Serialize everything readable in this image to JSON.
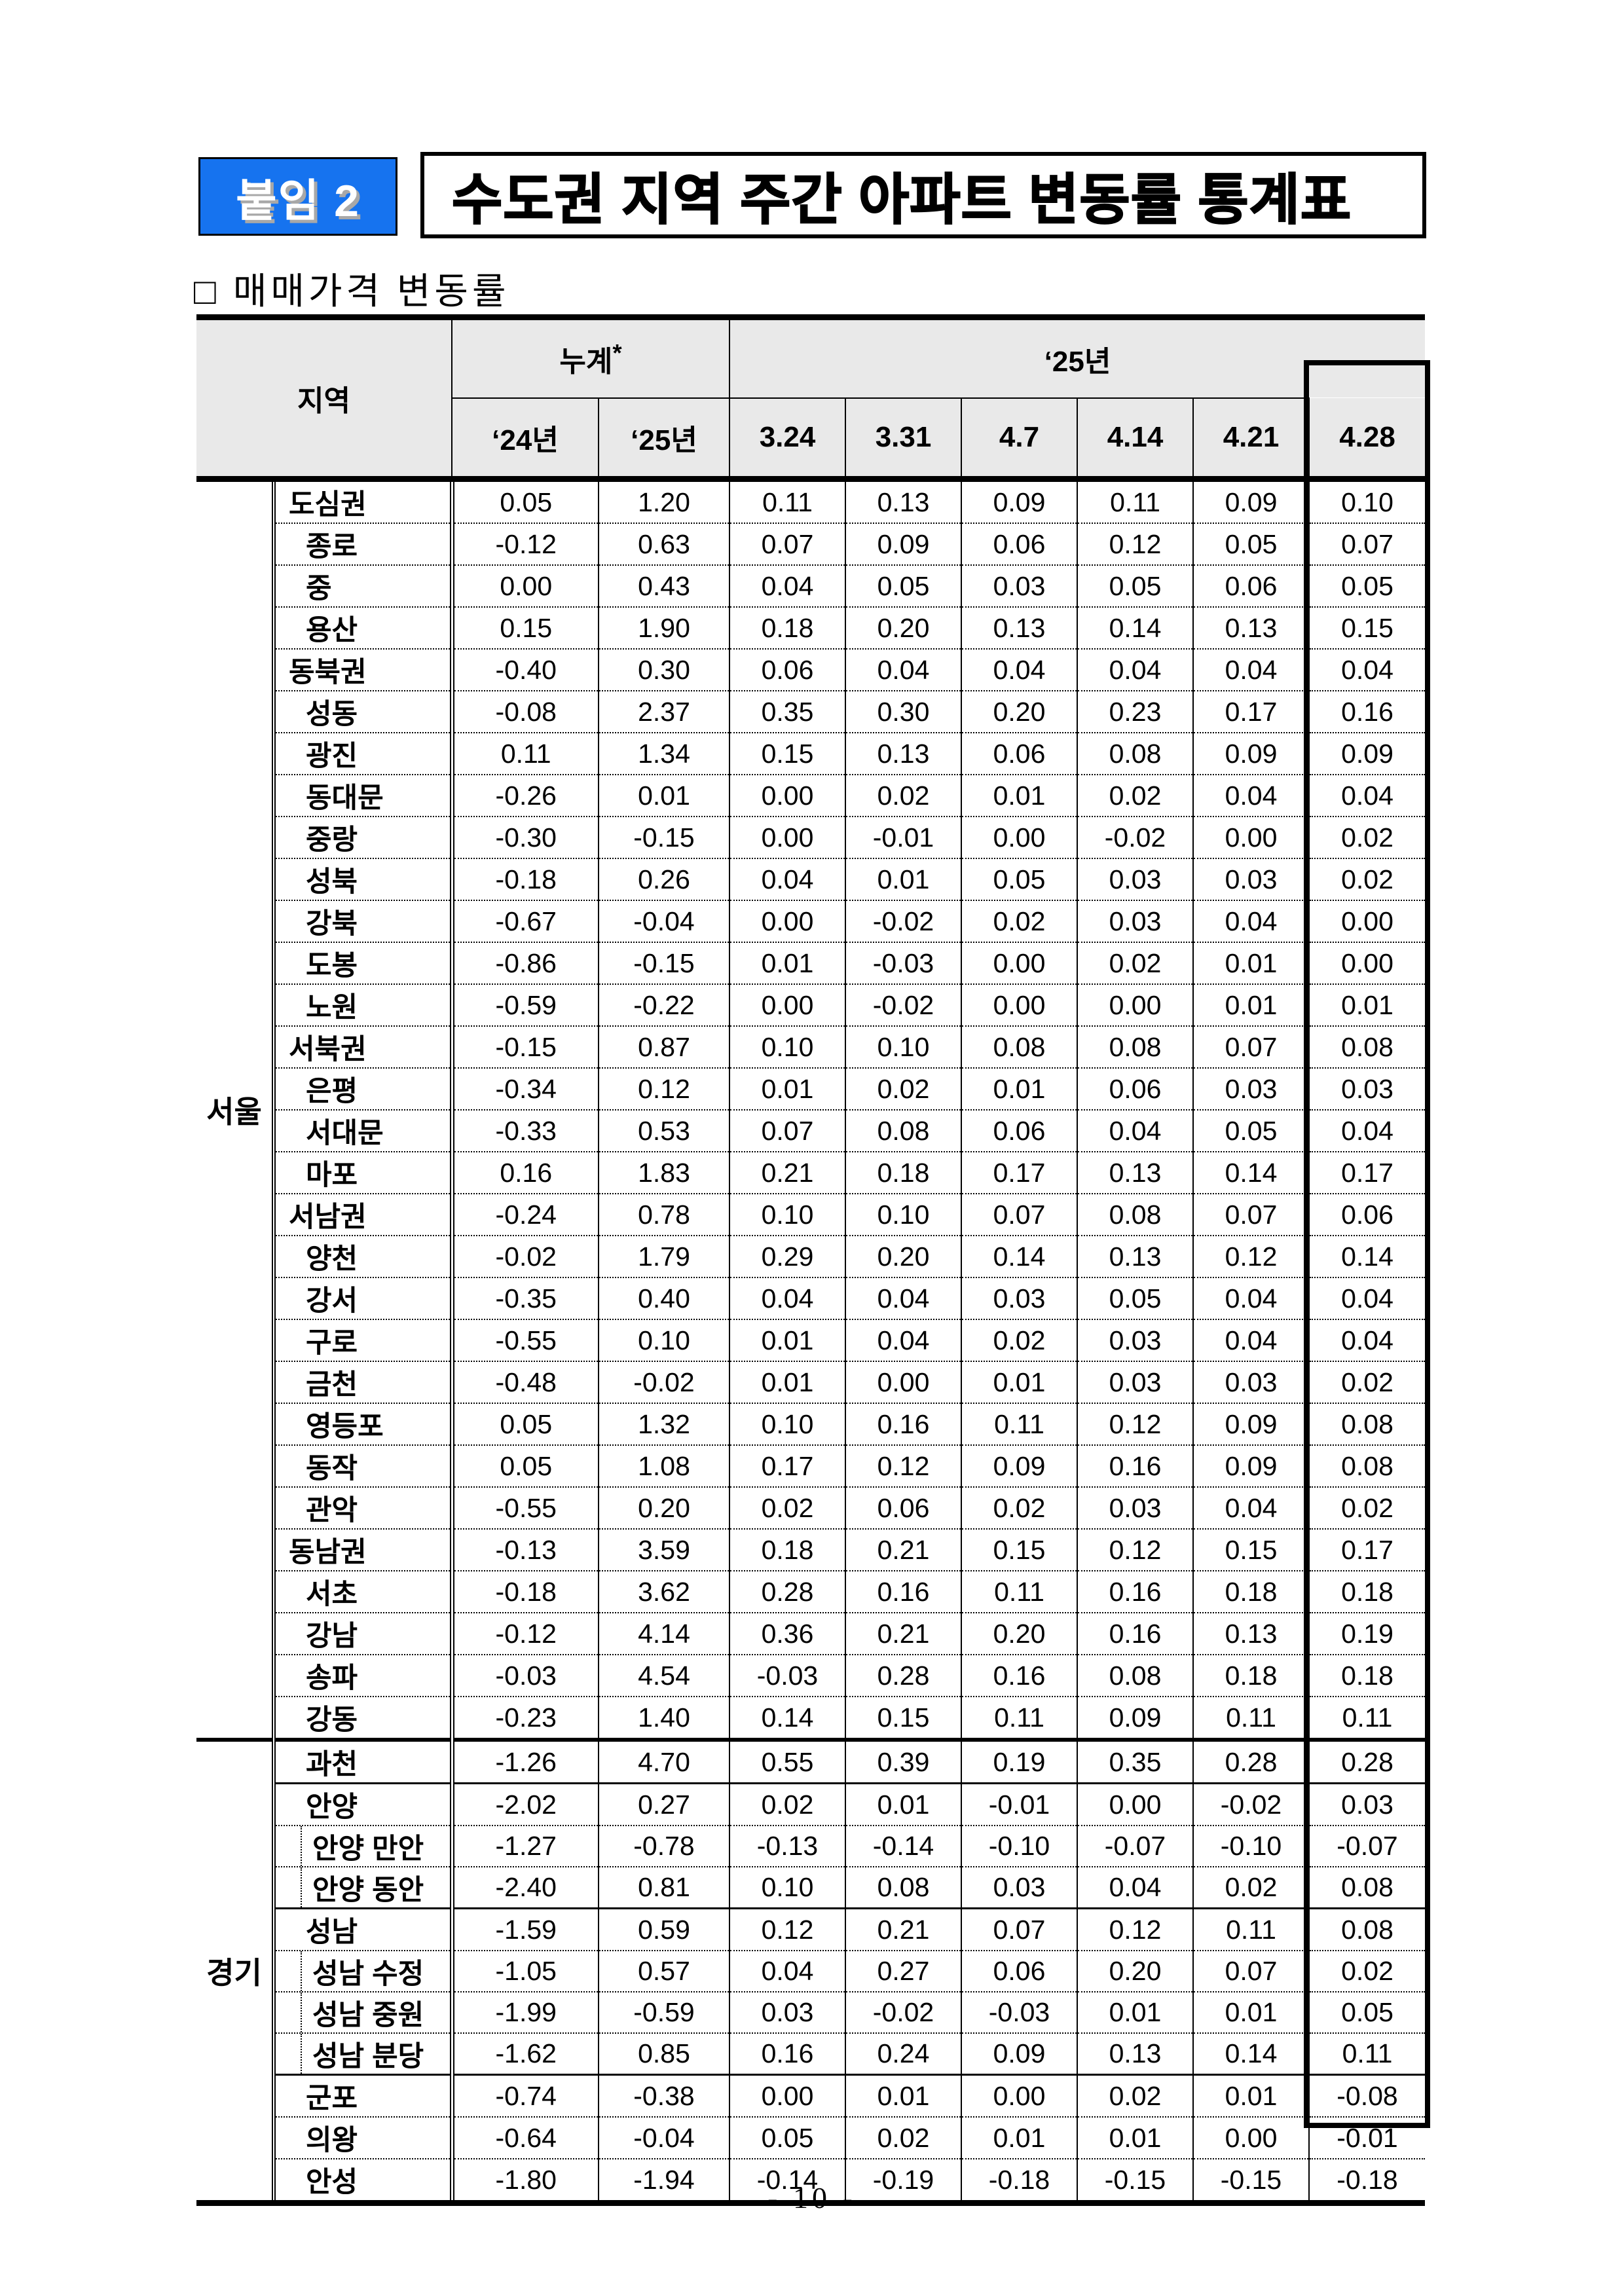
{
  "badge": {
    "label": "붙임 2",
    "color": "#1673ef"
  },
  "title": "수도권 지역 주간 아파트 변동률 통계표",
  "subtitle": "□ 매매가격 변동률",
  "footer": {
    "page_label": "- 10 -"
  },
  "table": {
    "header": {
      "region": "지역",
      "cumulative": "누계",
      "cumulative_note": "*",
      "year25_group": "‘25년",
      "sub_headers": [
        "‘24년",
        "‘25년",
        "3.24",
        "3.31",
        "4.7",
        "4.14",
        "4.21",
        "4.28"
      ],
      "highlighted_week": "4.28",
      "header_bg": "#e9e9e9"
    },
    "groups": [
      {
        "name": "서울",
        "rows": [
          {
            "name": "도심권",
            "level": "region",
            "sep": "none",
            "values": [
              "0.05",
              "1.20",
              "0.11",
              "0.13",
              "0.09",
              "0.11",
              "0.09",
              "0.10"
            ]
          },
          {
            "name": "종로",
            "level": "district",
            "sep": "dotted",
            "values": [
              "-0.12",
              "0.63",
              "0.07",
              "0.09",
              "0.06",
              "0.12",
              "0.05",
              "0.07"
            ]
          },
          {
            "name": "중",
            "level": "district",
            "sep": "dotted",
            "values": [
              "0.00",
              "0.43",
              "0.04",
              "0.05",
              "0.03",
              "0.05",
              "0.06",
              "0.05"
            ]
          },
          {
            "name": "용산",
            "level": "district",
            "sep": "dotted",
            "values": [
              "0.15",
              "1.90",
              "0.18",
              "0.20",
              "0.13",
              "0.14",
              "0.13",
              "0.15"
            ]
          },
          {
            "name": "동북권",
            "level": "region",
            "sep": "dotted",
            "values": [
              "-0.40",
              "0.30",
              "0.06",
              "0.04",
              "0.04",
              "0.04",
              "0.04",
              "0.04"
            ]
          },
          {
            "name": "성동",
            "level": "district",
            "sep": "dotted",
            "values": [
              "-0.08",
              "2.37",
              "0.35",
              "0.30",
              "0.20",
              "0.23",
              "0.17",
              "0.16"
            ]
          },
          {
            "name": "광진",
            "level": "district",
            "sep": "dotted",
            "values": [
              "0.11",
              "1.34",
              "0.15",
              "0.13",
              "0.06",
              "0.08",
              "0.09",
              "0.09"
            ]
          },
          {
            "name": "동대문",
            "level": "district",
            "sep": "dotted",
            "values": [
              "-0.26",
              "0.01",
              "0.00",
              "0.02",
              "0.01",
              "0.02",
              "0.04",
              "0.04"
            ]
          },
          {
            "name": "중랑",
            "level": "district",
            "sep": "dotted",
            "values": [
              "-0.30",
              "-0.15",
              "0.00",
              "-0.01",
              "0.00",
              "-0.02",
              "0.00",
              "0.02"
            ]
          },
          {
            "name": "성북",
            "level": "district",
            "sep": "dotted",
            "values": [
              "-0.18",
              "0.26",
              "0.04",
              "0.01",
              "0.05",
              "0.03",
              "0.03",
              "0.02"
            ]
          },
          {
            "name": "강북",
            "level": "district",
            "sep": "dotted",
            "values": [
              "-0.67",
              "-0.04",
              "0.00",
              "-0.02",
              "0.02",
              "0.03",
              "0.04",
              "0.00"
            ]
          },
          {
            "name": "도봉",
            "level": "district",
            "sep": "dotted",
            "values": [
              "-0.86",
              "-0.15",
              "0.01",
              "-0.03",
              "0.00",
              "0.02",
              "0.01",
              "0.00"
            ]
          },
          {
            "name": "노원",
            "level": "district",
            "sep": "dotted",
            "values": [
              "-0.59",
              "-0.22",
              "0.00",
              "-0.02",
              "0.00",
              "0.00",
              "0.01",
              "0.01"
            ]
          },
          {
            "name": "서북권",
            "level": "region",
            "sep": "dotted",
            "values": [
              "-0.15",
              "0.87",
              "0.10",
              "0.10",
              "0.08",
              "0.08",
              "0.07",
              "0.08"
            ]
          },
          {
            "name": "은평",
            "level": "district",
            "sep": "dotted",
            "values": [
              "-0.34",
              "0.12",
              "0.01",
              "0.02",
              "0.01",
              "0.06",
              "0.03",
              "0.03"
            ]
          },
          {
            "name": "서대문",
            "level": "district",
            "sep": "dotted",
            "values": [
              "-0.33",
              "0.53",
              "0.07",
              "0.08",
              "0.06",
              "0.04",
              "0.05",
              "0.04"
            ]
          },
          {
            "name": "마포",
            "level": "district",
            "sep": "dotted",
            "values": [
              "0.16",
              "1.83",
              "0.21",
              "0.18",
              "0.17",
              "0.13",
              "0.14",
              "0.17"
            ]
          },
          {
            "name": "서남권",
            "level": "region",
            "sep": "dotted",
            "values": [
              "-0.24",
              "0.78",
              "0.10",
              "0.10",
              "0.07",
              "0.08",
              "0.07",
              "0.06"
            ]
          },
          {
            "name": "양천",
            "level": "district",
            "sep": "dotted",
            "values": [
              "-0.02",
              "1.79",
              "0.29",
              "0.20",
              "0.14",
              "0.13",
              "0.12",
              "0.14"
            ]
          },
          {
            "name": "강서",
            "level": "district",
            "sep": "dotted",
            "values": [
              "-0.35",
              "0.40",
              "0.04",
              "0.04",
              "0.03",
              "0.05",
              "0.04",
              "0.04"
            ]
          },
          {
            "name": "구로",
            "level": "district",
            "sep": "dotted",
            "values": [
              "-0.55",
              "0.10",
              "0.01",
              "0.04",
              "0.02",
              "0.03",
              "0.04",
              "0.04"
            ]
          },
          {
            "name": "금천",
            "level": "district",
            "sep": "dotted",
            "values": [
              "-0.48",
              "-0.02",
              "0.01",
              "0.00",
              "0.01",
              "0.03",
              "0.03",
              "0.02"
            ]
          },
          {
            "name": "영등포",
            "level": "district",
            "sep": "dotted",
            "values": [
              "0.05",
              "1.32",
              "0.10",
              "0.16",
              "0.11",
              "0.12",
              "0.09",
              "0.08"
            ]
          },
          {
            "name": "동작",
            "level": "district",
            "sep": "dotted",
            "values": [
              "0.05",
              "1.08",
              "0.17",
              "0.12",
              "0.09",
              "0.16",
              "0.09",
              "0.08"
            ]
          },
          {
            "name": "관악",
            "level": "district",
            "sep": "dotted",
            "values": [
              "-0.55",
              "0.20",
              "0.02",
              "0.06",
              "0.02",
              "0.03",
              "0.04",
              "0.02"
            ]
          },
          {
            "name": "동남권",
            "level": "region",
            "sep": "dotted",
            "values": [
              "-0.13",
              "3.59",
              "0.18",
              "0.21",
              "0.15",
              "0.12",
              "0.15",
              "0.17"
            ]
          },
          {
            "name": "서초",
            "level": "district",
            "sep": "dotted",
            "values": [
              "-0.18",
              "3.62",
              "0.28",
              "0.16",
              "0.11",
              "0.16",
              "0.18",
              "0.18"
            ]
          },
          {
            "name": "강남",
            "level": "district",
            "sep": "dotted",
            "values": [
              "-0.12",
              "4.14",
              "0.36",
              "0.21",
              "0.20",
              "0.16",
              "0.13",
              "0.19"
            ]
          },
          {
            "name": "송파",
            "level": "district",
            "sep": "dotted",
            "values": [
              "-0.03",
              "4.54",
              "-0.03",
              "0.28",
              "0.16",
              "0.08",
              "0.18",
              "0.18"
            ]
          },
          {
            "name": "강동",
            "level": "district",
            "sep": "dotted",
            "values": [
              "-0.23",
              "1.40",
              "0.14",
              "0.15",
              "0.11",
              "0.09",
              "0.11",
              "0.11"
            ]
          }
        ]
      },
      {
        "name": "경기",
        "rows": [
          {
            "name": "과천",
            "level": "district",
            "sep": "heavy",
            "values": [
              "-1.26",
              "4.70",
              "0.55",
              "0.39",
              "0.19",
              "0.35",
              "0.28",
              "0.28"
            ]
          },
          {
            "name": "안양",
            "level": "district",
            "sep": "solid",
            "values": [
              "-2.02",
              "0.27",
              "0.02",
              "0.01",
              "-0.01",
              "0.00",
              "-0.02",
              "0.03"
            ]
          },
          {
            "name": "안양 만안",
            "level": "sub",
            "sep": "dotted",
            "values": [
              "-1.27",
              "-0.78",
              "-0.13",
              "-0.14",
              "-0.10",
              "-0.07",
              "-0.10",
              "-0.07"
            ]
          },
          {
            "name": "안양 동안",
            "level": "sub",
            "sep": "dotted",
            "values": [
              "-2.40",
              "0.81",
              "0.10",
              "0.08",
              "0.03",
              "0.04",
              "0.02",
              "0.08"
            ]
          },
          {
            "name": "성남",
            "level": "district",
            "sep": "solid",
            "values": [
              "-1.59",
              "0.59",
              "0.12",
              "0.21",
              "0.07",
              "0.12",
              "0.11",
              "0.08"
            ]
          },
          {
            "name": "성남 수정",
            "level": "sub",
            "sep": "dotted",
            "values": [
              "-1.05",
              "0.57",
              "0.04",
              "0.27",
              "0.06",
              "0.20",
              "0.07",
              "0.02"
            ]
          },
          {
            "name": "성남 중원",
            "level": "sub",
            "sep": "dotted",
            "values": [
              "-1.99",
              "-0.59",
              "0.03",
              "-0.02",
              "-0.03",
              "0.01",
              "0.01",
              "0.05"
            ]
          },
          {
            "name": "성남 분당",
            "level": "sub",
            "sep": "dotted",
            "values": [
              "-1.62",
              "0.85",
              "0.16",
              "0.24",
              "0.09",
              "0.13",
              "0.14",
              "0.11"
            ]
          },
          {
            "name": "군포",
            "level": "district",
            "sep": "solid",
            "values": [
              "-0.74",
              "-0.38",
              "0.00",
              "0.01",
              "0.00",
              "0.02",
              "0.01",
              "-0.08"
            ]
          },
          {
            "name": "의왕",
            "level": "district",
            "sep": "dotted",
            "values": [
              "-0.64",
              "-0.04",
              "0.05",
              "0.02",
              "0.01",
              "0.01",
              "0.00",
              "-0.01"
            ]
          },
          {
            "name": "안성",
            "level": "district",
            "sep": "dotted",
            "values": [
              "-1.80",
              "-1.94",
              "-0.14",
              "-0.19",
              "-0.18",
              "-0.15",
              "-0.15",
              "-0.18"
            ]
          }
        ]
      }
    ]
  }
}
